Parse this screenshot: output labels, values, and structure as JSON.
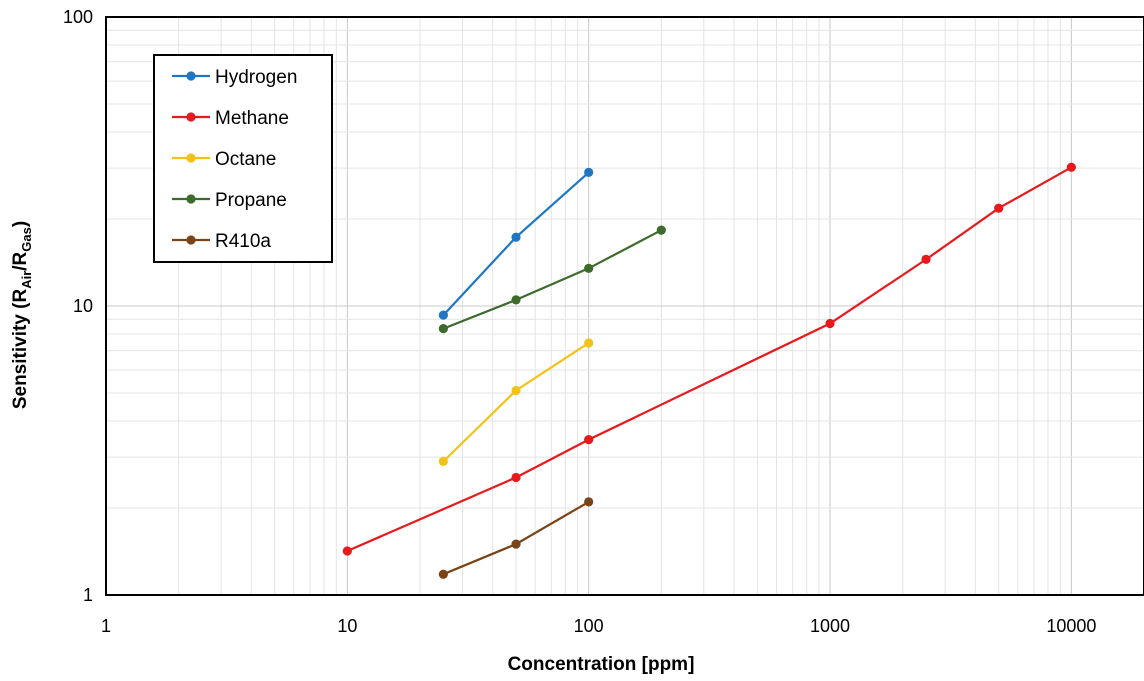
{
  "chart_data": {
    "type": "line",
    "title": "",
    "xlabel": "Concentration [ppm]",
    "ylabel": {
      "main": "Sensitivity (R",
      "sub1": "Air",
      "mid": "/R",
      "sub2": "Gas",
      "end": ")"
    },
    "x_scale": "log",
    "y_scale": "log",
    "xlim": [
      1,
      20000
    ],
    "ylim": [
      1,
      100
    ],
    "x_ticks": [
      {
        "value": 1,
        "label": "1"
      },
      {
        "value": 10,
        "label": "10"
      },
      {
        "value": 100,
        "label": "100"
      },
      {
        "value": 1000,
        "label": "1000"
      },
      {
        "value": 10000,
        "label": "10000"
      }
    ],
    "y_ticks": [
      {
        "value": 1,
        "label": "1"
      },
      {
        "value": 10,
        "label": "10"
      },
      {
        "value": 100,
        "label": "100"
      }
    ],
    "grid": "major and minor",
    "legend_position": "top-left",
    "series": [
      {
        "name": "Hydrogen",
        "color": "#1f77c4",
        "points": [
          [
            25,
            9.3
          ],
          [
            50,
            17.3
          ],
          [
            100,
            29.0
          ]
        ]
      },
      {
        "name": "Methane",
        "color": "#e8191d",
        "points": [
          [
            10,
            1.42
          ],
          [
            50,
            2.55
          ],
          [
            100,
            3.45
          ],
          [
            1000,
            8.7
          ],
          [
            2500,
            14.5
          ],
          [
            5000,
            21.8
          ],
          [
            10000,
            30.2
          ]
        ]
      },
      {
        "name": "Octane",
        "color": "#f2c316",
        "points": [
          [
            25,
            2.9
          ],
          [
            50,
            5.1
          ],
          [
            100,
            7.45
          ]
        ]
      },
      {
        "name": "Propane",
        "color": "#3c6b2c",
        "points": [
          [
            25,
            8.35
          ],
          [
            50,
            10.5
          ],
          [
            100,
            13.5
          ],
          [
            200,
            18.3
          ]
        ]
      },
      {
        "name": "R410a",
        "color": "#7a4418",
        "points": [
          [
            25,
            1.18
          ],
          [
            50,
            1.5
          ],
          [
            100,
            2.1
          ]
        ]
      }
    ]
  }
}
